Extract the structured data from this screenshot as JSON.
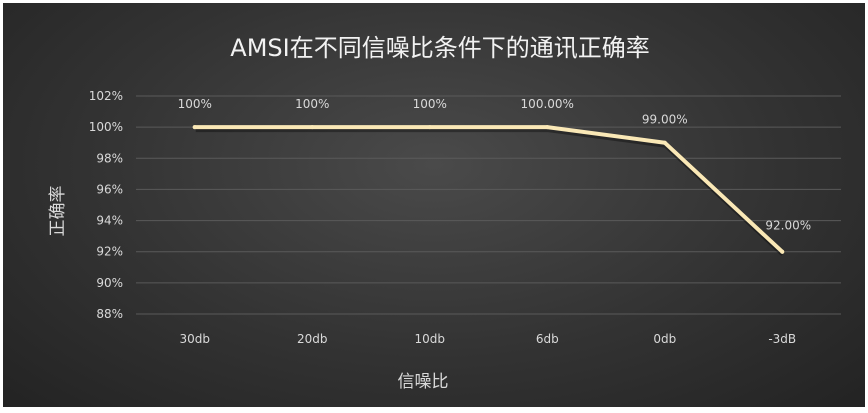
{
  "chart_data": {
    "type": "line",
    "title": "AMSI在不同信噪比条件下的通讯正确率",
    "xlabel": "信噪比",
    "ylabel": "正确率",
    "categories": [
      "30db",
      "20db",
      "10db",
      "6db",
      "0db",
      "-3dB"
    ],
    "series": [
      {
        "values": [
          100,
          100,
          100,
          100,
          99,
          92
        ],
        "data_labels": [
          "100%",
          "100%",
          "100%",
          "100.00%",
          "99.00%",
          "92.00%"
        ]
      }
    ],
    "ylim": [
      88,
      102
    ],
    "yticks": [
      88,
      90,
      92,
      94,
      96,
      98,
      100,
      102
    ],
    "ytick_labels": [
      "88%",
      "90%",
      "92%",
      "94%",
      "96%",
      "98%",
      "100%",
      "102%"
    ],
    "grid": true,
    "legend": "none",
    "line_color": "#fae8b6",
    "background_color": "#3a3a3a"
  }
}
